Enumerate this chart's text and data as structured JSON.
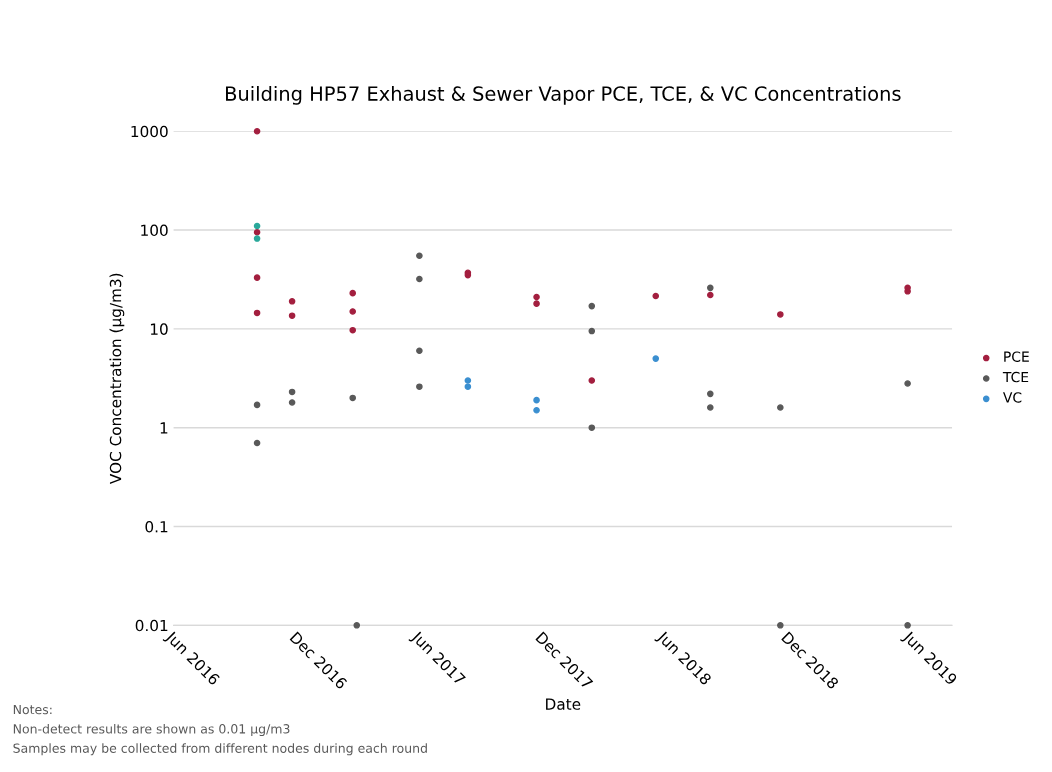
{
  "chart_data": {
    "type": "scatter",
    "title": "Building HP57 Exhaust & Sewer Vapor PCE, TCE, & VC Concentrations",
    "xlabel": "Date",
    "ylabel": "VOC Concentration (µg/m3)",
    "log": "y",
    "grid": "y",
    "legend": "right",
    "marker": "circle",
    "xlim": [
      "2016-06-01",
      "2019-08-01"
    ],
    "xticks": [
      {
        "value": "2016-06-01",
        "label": "Jun 2016"
      },
      {
        "value": "2016-12-01",
        "label": "Dec 2016"
      },
      {
        "value": "2017-06-01",
        "label": "Jun 2017"
      },
      {
        "value": "2017-12-01",
        "label": "Dec 2017"
      },
      {
        "value": "2018-06-01",
        "label": "Jun 2018"
      },
      {
        "value": "2018-12-01",
        "label": "Dec 2018"
      },
      {
        "value": "2019-06-01",
        "label": "Jun 2019"
      }
    ],
    "ylim": [
      0.01,
      1000
    ],
    "yticks": [
      0.01,
      0.1,
      1,
      10,
      100,
      1000
    ],
    "series": [
      {
        "name": "PCE",
        "color": "#a31f3f",
        "x": [
          "2016-10-03",
          "2016-10-03",
          "2016-10-03",
          "2016-10-03",
          "2016-11-24",
          "2016-11-24",
          "2017-02-22",
          "2017-02-22",
          "2017-02-22",
          "2017-08-12",
          "2017-08-12",
          "2017-11-22",
          "2017-11-22",
          "2018-02-12",
          "2018-05-18",
          "2018-08-07",
          "2018-11-19",
          "2019-05-27",
          "2019-05-27"
        ],
        "values": [
          1000,
          95,
          33,
          14.5,
          19,
          13.6,
          23,
          15,
          9.7,
          37,
          35,
          21,
          18,
          3,
          21.5,
          22,
          14,
          26,
          24
        ]
      },
      {
        "name": "TCE",
        "color": "#595959",
        "x": [
          "2016-10-03",
          "2016-10-03",
          "2016-11-24",
          "2016-11-24",
          "2017-02-22",
          "2017-02-28",
          "2017-06-01",
          "2017-06-01",
          "2017-06-01",
          "2017-06-01",
          "2018-02-12",
          "2018-02-12",
          "2018-02-12",
          "2018-08-07",
          "2018-08-07",
          "2018-08-07",
          "2018-11-19",
          "2018-11-19",
          "2019-05-27",
          "2019-05-27"
        ],
        "values": [
          1.7,
          0.7,
          2.3,
          1.8,
          2,
          0.01,
          55,
          32,
          6,
          2.6,
          17,
          9.5,
          1,
          26,
          2.2,
          1.6,
          1.6,
          0.01,
          2.8,
          0.01
        ]
      },
      {
        "name": "VC",
        "color": "#3b8fd0",
        "colors": [
          "#2aa89a",
          "#2aa89a",
          "#3b8fd0",
          "#3b8fd0",
          "#3b8fd0",
          "#3b8fd0",
          "#3b8fd0"
        ],
        "x": [
          "2016-10-03",
          "2016-10-03",
          "2017-08-12",
          "2017-08-12",
          "2017-11-22",
          "2017-11-22",
          "2018-05-18"
        ],
        "values": [
          110,
          82,
          3,
          2.6,
          1.9,
          1.5,
          5
        ]
      }
    ],
    "annotations": [
      "Notes:",
      "Non-detect results are shown as 0.01 µg/m3",
      "Samples may be collected from different nodes during each round"
    ]
  }
}
